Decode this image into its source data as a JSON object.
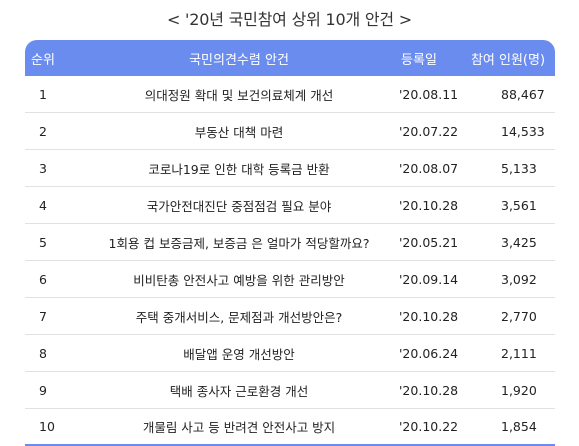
{
  "title": "< '20년 국민참여 상위 10개 안건 >",
  "table": {
    "headers": {
      "rank": "순위",
      "agenda": "국민의견수렴 안건",
      "date": "등록일",
      "count": "참여 인원(명)"
    },
    "rows": [
      {
        "rank": "1",
        "agenda": "의대정원 확대 및 보건의료체계 개선",
        "date": "'20.08.11",
        "count": "88,467"
      },
      {
        "rank": "2",
        "agenda": "부동산 대책 마련",
        "date": "'20.07.22",
        "count": "14,533"
      },
      {
        "rank": "3",
        "agenda": "코로나19로 인한 대학 등록금 반환",
        "date": "'20.08.07",
        "count": "5,133"
      },
      {
        "rank": "4",
        "agenda": "국가안전대진단 중점점검 필요 분야",
        "date": "'20.10.28",
        "count": "3,561"
      },
      {
        "rank": "5",
        "agenda": "1회용 컵 보증금제, 보증금 은 얼마가 적당할까요?",
        "date": "'20.05.21",
        "count": "3,425"
      },
      {
        "rank": "6",
        "agenda": "비비탄총 안전사고 예방을 위한 관리방안",
        "date": "'20.09.14",
        "count": "3,092"
      },
      {
        "rank": "7",
        "agenda": "주택 중개서비스, 문제점과 개선방안은?",
        "date": "'20.10.28",
        "count": "2,770"
      },
      {
        "rank": "8",
        "agenda": "배달앱 운영 개선방안",
        "date": "'20.06.24",
        "count": "2,111"
      },
      {
        "rank": "9",
        "agenda": "택배 종사자 근로환경 개선",
        "date": "'20.10.28",
        "count": "1,920"
      },
      {
        "rank": "10",
        "agenda": "개물림 사고 등 반려견 안전사고 방지",
        "date": "'20.10.22",
        "count": "1,854"
      }
    ]
  },
  "colors": {
    "header_bg": "#6b8cef",
    "header_text": "#ffffff",
    "divider": "#e1e1e1"
  }
}
